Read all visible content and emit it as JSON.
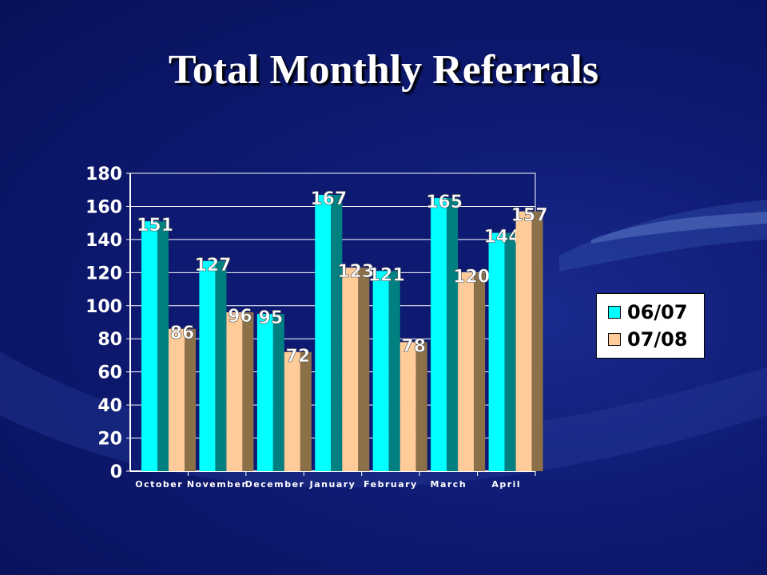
{
  "slide": {
    "title": "Total Monthly Referrals"
  },
  "colors": {
    "series1": "#00ffff",
    "series1_side": "#008080",
    "series2": "#ffcc99",
    "series2_side": "#8c7048",
    "plot_bg": "#0e1a72",
    "grid": "#ffffff"
  },
  "chart_data": {
    "type": "bar",
    "categories": [
      "October",
      "November",
      "December",
      "January",
      "February",
      "March",
      "April"
    ],
    "series": [
      {
        "name": "06/07",
        "values": [
          151,
          127,
          95,
          167,
          121,
          165,
          144
        ]
      },
      {
        "name": "07/08",
        "values": [
          86,
          96,
          72,
          123,
          78,
          120,
          157
        ]
      }
    ],
    "ylim": [
      0,
      180
    ],
    "yticks": [
      0,
      20,
      40,
      60,
      80,
      100,
      120,
      140,
      160,
      180
    ],
    "grid": true,
    "legend": "right"
  }
}
